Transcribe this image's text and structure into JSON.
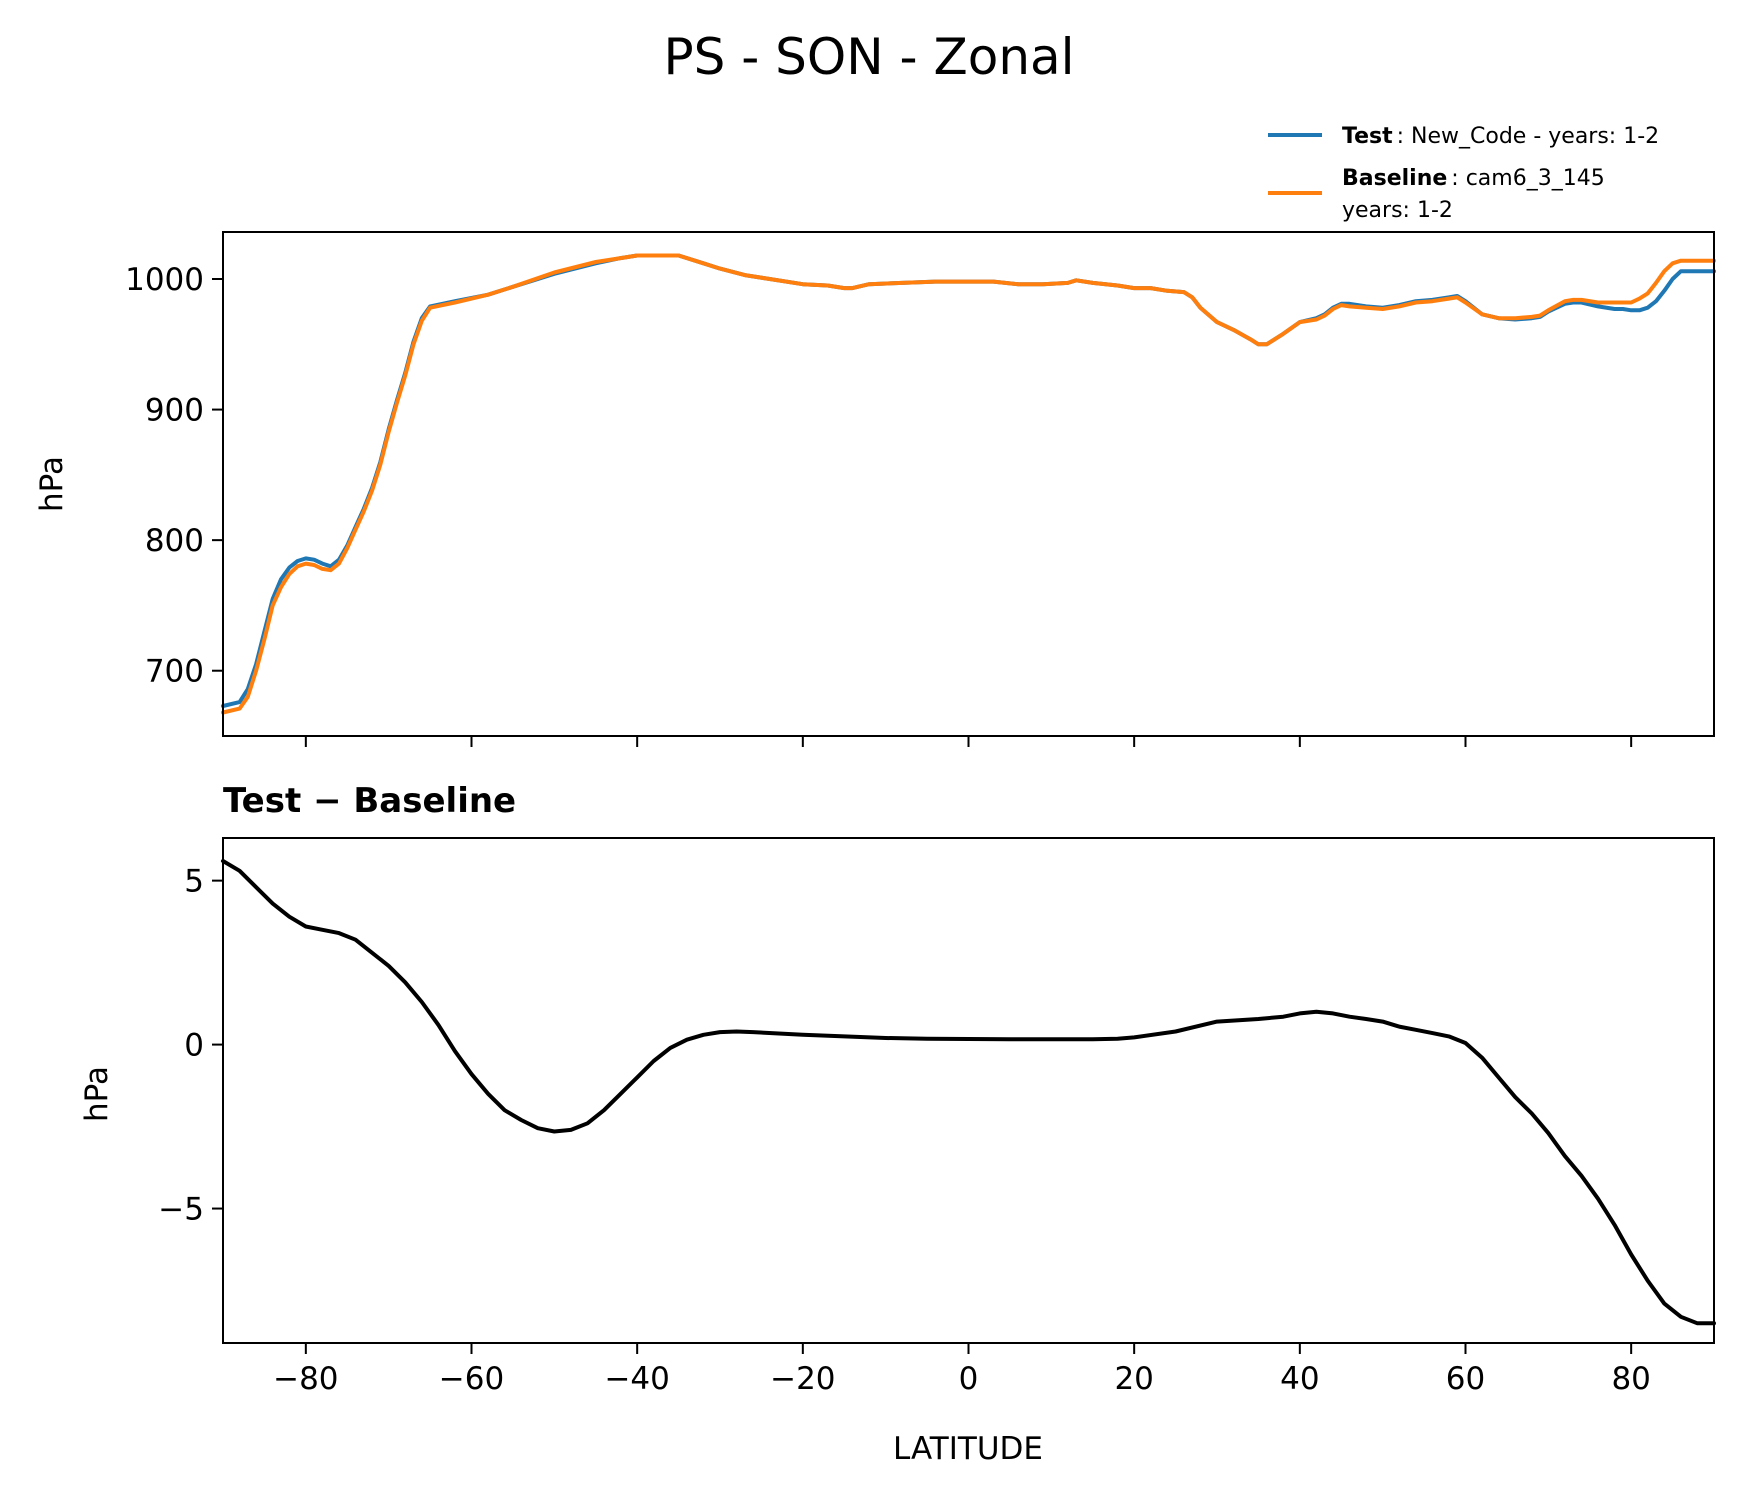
{
  "chart_data": [
    {
      "type": "line",
      "title": "PS - SON - Zonal",
      "xlabel": "",
      "ylabel": "hPa",
      "xlim": [
        -90,
        90
      ],
      "ylim": [
        650,
        1036
      ],
      "yticks": [
        700,
        800,
        900,
        1000
      ],
      "yticklabels": [
        "700",
        "800",
        "900",
        "1000"
      ],
      "xticks": [
        -80,
        -60,
        -40,
        -20,
        0,
        20,
        40,
        60,
        80
      ],
      "grid": false,
      "legend": {
        "location": "above-right",
        "entries": [
          {
            "bold": "Test",
            "text": ": New_Code - years: 1-2",
            "color": "#1f77b4"
          },
          {
            "bold": "Baseline",
            "text": ": cam6_3_145",
            "text2": "years: 1-2",
            "color": "#ff7f0e"
          }
        ]
      },
      "series": [
        {
          "name": "Test",
          "color": "#1f77b4",
          "x": [
            -90,
            -88,
            -87,
            -86,
            -85,
            -84,
            -83,
            -82,
            -81,
            -80,
            -79,
            -78,
            -77,
            -76,
            -75,
            -74,
            -73,
            -72,
            -71,
            -70,
            -69,
            -68,
            -67,
            -66,
            -65,
            -62,
            -58,
            -55,
            -50,
            -45,
            -42,
            -40,
            -38,
            -35,
            -32,
            -30,
            -27,
            -24,
            -20,
            -17,
            -15,
            -14,
            -12,
            -8,
            -4,
            0,
            3,
            6,
            9,
            12,
            13,
            15,
            18,
            20,
            22,
            24,
            26,
            27,
            28,
            30,
            32,
            34,
            35,
            36,
            38,
            40,
            42,
            43,
            44,
            45,
            46,
            48,
            50,
            52,
            54,
            56,
            58,
            59,
            60,
            62,
            64,
            66,
            68,
            69,
            70,
            72,
            73,
            74,
            76,
            78,
            79,
            80,
            81,
            82,
            83,
            84,
            85,
            86,
            88,
            90
          ],
          "values": [
            673,
            676,
            686,
            705,
            730,
            755,
            770,
            779,
            784,
            786,
            785,
            782,
            780,
            785,
            796,
            810,
            824,
            840,
            860,
            885,
            907,
            928,
            952,
            970,
            979,
            983,
            988,
            994,
            1004,
            1012,
            1016,
            1018,
            1018,
            1018,
            1012,
            1008,
            1003,
            1000,
            996,
            995,
            993,
            993,
            996,
            997,
            998,
            998,
            998,
            996,
            996,
            997,
            999,
            997,
            995,
            993,
            993,
            991,
            990,
            986,
            978,
            967,
            961,
            954,
            950,
            950,
            958,
            967,
            970,
            973,
            978,
            981,
            981,
            979,
            978,
            980,
            983,
            984,
            986,
            987,
            983,
            973,
            970,
            969,
            970,
            971,
            975,
            981,
            982,
            982,
            979,
            977,
            977,
            976,
            976,
            978,
            983,
            991,
            1000,
            1006,
            1006,
            1006
          ]
        },
        {
          "name": "Baseline",
          "color": "#ff7f0e",
          "x": [
            -90,
            -88,
            -87,
            -86,
            -85,
            -84,
            -83,
            -82,
            -81,
            -80,
            -79,
            -78,
            -77,
            -76,
            -75,
            -74,
            -73,
            -72,
            -71,
            -70,
            -69,
            -68,
            -67,
            -66,
            -65,
            -62,
            -58,
            -55,
            -50,
            -45,
            -42,
            -40,
            -38,
            -35,
            -32,
            -30,
            -27,
            -24,
            -20,
            -17,
            -15,
            -14,
            -12,
            -8,
            -4,
            0,
            3,
            6,
            9,
            12,
            13,
            15,
            18,
            20,
            22,
            24,
            26,
            27,
            28,
            30,
            32,
            34,
            35,
            36,
            38,
            40,
            42,
            43,
            44,
            45,
            46,
            48,
            50,
            52,
            54,
            56,
            58,
            59,
            60,
            62,
            64,
            66,
            68,
            69,
            70,
            72,
            73,
            74,
            76,
            78,
            79,
            80,
            81,
            82,
            83,
            84,
            85,
            86,
            88,
            90
          ],
          "values": [
            668,
            671,
            680,
            700,
            724,
            750,
            764,
            774,
            780,
            782,
            781,
            778,
            777,
            782,
            794,
            808,
            822,
            838,
            858,
            883,
            905,
            926,
            950,
            968,
            978,
            982,
            988,
            994,
            1005,
            1013,
            1016,
            1018,
            1018,
            1018,
            1012,
            1008,
            1003,
            1000,
            996,
            995,
            993,
            993,
            996,
            997,
            998,
            998,
            998,
            996,
            996,
            997,
            999,
            997,
            995,
            993,
            993,
            991,
            990,
            986,
            978,
            967,
            961,
            954,
            950,
            950,
            958,
            967,
            969,
            972,
            977,
            980,
            979,
            978,
            977,
            979,
            982,
            983,
            985,
            986,
            982,
            973,
            970,
            970,
            971,
            972,
            976,
            983,
            984,
            984,
            982,
            982,
            982,
            982,
            985,
            989,
            997,
            1006,
            1012,
            1014,
            1014,
            1014
          ]
        }
      ]
    },
    {
      "type": "line",
      "title": "Test − Baseline",
      "xlabel": "LATITUDE",
      "ylabel": "hPa",
      "xlim": [
        -90,
        90
      ],
      "ylim": [
        -9.1,
        6.3
      ],
      "yticks": [
        -5,
        0,
        5
      ],
      "yticklabels": [
        "−5",
        "0",
        "5"
      ],
      "xticks": [
        -80,
        -60,
        -40,
        -20,
        0,
        20,
        40,
        60,
        80
      ],
      "xticklabels": [
        "−80",
        "−60",
        "−40",
        "−20",
        "0",
        "20",
        "40",
        "60",
        "80"
      ],
      "grid": false,
      "series": [
        {
          "name": "Test − Baseline",
          "color": "#000000",
          "x": [
            -90,
            -88,
            -86,
            -84,
            -82,
            -80,
            -78,
            -76,
            -74,
            -72,
            -70,
            -68,
            -66,
            -64,
            -62,
            -60,
            -58,
            -56,
            -54,
            -52,
            -50,
            -48,
            -46,
            -44,
            -42,
            -40,
            -38,
            -36,
            -34,
            -32,
            -30,
            -28,
            -26,
            -20,
            -15,
            -10,
            -5,
            0,
            5,
            10,
            15,
            18,
            20,
            25,
            30,
            35,
            38,
            40,
            42,
            44,
            46,
            48,
            50,
            52,
            54,
            56,
            58,
            60,
            62,
            64,
            66,
            68,
            70,
            72,
            74,
            76,
            78,
            80,
            82,
            84,
            86,
            88,
            90
          ],
          "values": [
            5.6,
            5.3,
            4.8,
            4.3,
            3.9,
            3.6,
            3.5,
            3.4,
            3.2,
            2.8,
            2.4,
            1.9,
            1.3,
            0.6,
            -0.2,
            -0.9,
            -1.5,
            -2.0,
            -2.3,
            -2.55,
            -2.65,
            -2.6,
            -2.4,
            -2.0,
            -1.5,
            -1.0,
            -0.5,
            -0.1,
            0.15,
            0.3,
            0.38,
            0.4,
            0.38,
            0.3,
            0.25,
            0.2,
            0.18,
            0.17,
            0.16,
            0.16,
            0.16,
            0.18,
            0.22,
            0.4,
            0.7,
            0.78,
            0.85,
            0.95,
            1.0,
            0.95,
            0.85,
            0.78,
            0.7,
            0.55,
            0.45,
            0.35,
            0.25,
            0.05,
            -0.4,
            -1.0,
            -1.6,
            -2.1,
            -2.7,
            -3.4,
            -4.0,
            -4.7,
            -5.5,
            -6.4,
            -7.2,
            -7.9,
            -8.3,
            -8.5,
            -8.5
          ]
        }
      ]
    }
  ]
}
